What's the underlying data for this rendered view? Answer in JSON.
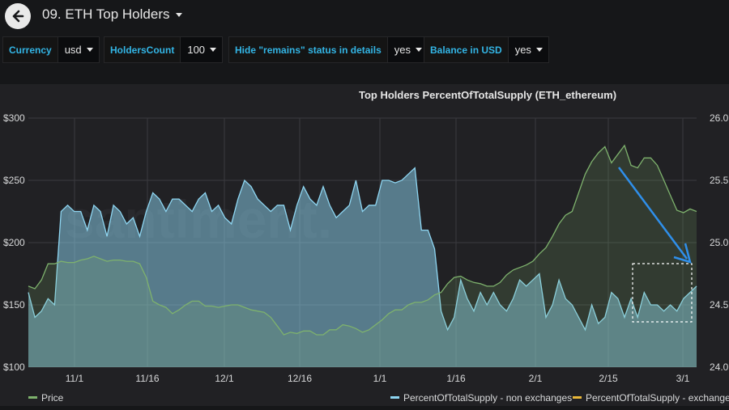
{
  "header": {
    "title": "09. ETH Top Holders"
  },
  "variables": [
    {
      "label": "Currency",
      "value": "usd"
    },
    {
      "label": "HoldersCount",
      "value": "100"
    },
    {
      "label": "Hide \"remains\" status in details",
      "value": "yes"
    },
    {
      "label": "Balance in USD",
      "value": "yes"
    }
  ],
  "panel": {
    "watermark": "santiment."
  },
  "chart_data": {
    "type": "area",
    "title": "Top Holders PercentOfTotalSupply (ETH_ethereum)",
    "x_ticks": [
      "11/1",
      "11/16",
      "12/1",
      "12/16",
      "1/1",
      "1/16",
      "2/1",
      "2/15",
      "3/1"
    ],
    "y_left": {
      "ticks": [
        "$100",
        "$150",
        "$200",
        "$250",
        "$300"
      ],
      "range": [
        100,
        300
      ]
    },
    "y_right": {
      "ticks": [
        "24.0",
        "24.5",
        "25.0",
        "25.5",
        "26.0"
      ],
      "range": [
        24.0,
        26.0
      ]
    },
    "grid": true,
    "legend_position": "bottom",
    "series": [
      {
        "name": "Price",
        "axis": "left",
        "color": "#7eb26d",
        "values": [
          165,
          163,
          170,
          183,
          183,
          185,
          184,
          184,
          186,
          187,
          189,
          187,
          185,
          186,
          186,
          185,
          185,
          183,
          172,
          153,
          150,
          148,
          143,
          146,
          150,
          153,
          153,
          149,
          149,
          148,
          149,
          150,
          150,
          148,
          146,
          145,
          144,
          140,
          133,
          126,
          128,
          127,
          129,
          129,
          126,
          126,
          130,
          130,
          134,
          133,
          131,
          128,
          130,
          134,
          138,
          143,
          146,
          146,
          150,
          152,
          152,
          154,
          158,
          160,
          167,
          172,
          173,
          170,
          168,
          167,
          165,
          165,
          168,
          174,
          178,
          180,
          182,
          185,
          191,
          196,
          205,
          215,
          222,
          225,
          240,
          255,
          265,
          272,
          277,
          264,
          271,
          278,
          262,
          260,
          268,
          268,
          262,
          250,
          238,
          226,
          224,
          227,
          225
        ]
      },
      {
        "name": "PercentOfTotalSupply - non exchanges",
        "axis": "right",
        "color": "#8ed6f2",
        "values": [
          24.6,
          24.4,
          24.45,
          24.55,
          24.5,
          25.25,
          25.3,
          25.25,
          25.25,
          25.1,
          25.3,
          25.25,
          25.05,
          25.3,
          25.25,
          25.15,
          25.2,
          25.05,
          25.25,
          25.4,
          25.35,
          25.25,
          25.35,
          25.35,
          25.3,
          25.25,
          25.35,
          25.4,
          25.25,
          25.3,
          25.2,
          25.15,
          25.35,
          25.5,
          25.45,
          25.35,
          25.3,
          25.25,
          25.3,
          25.3,
          25.1,
          25.3,
          25.45,
          25.35,
          25.3,
          25.45,
          25.3,
          25.2,
          25.25,
          25.3,
          25.5,
          25.25,
          25.3,
          25.3,
          25.5,
          25.5,
          25.48,
          25.5,
          25.55,
          25.6,
          25.1,
          25.1,
          24.95,
          24.45,
          24.3,
          24.4,
          24.7,
          24.55,
          24.45,
          24.6,
          24.5,
          24.6,
          24.5,
          24.45,
          24.55,
          24.7,
          24.65,
          24.7,
          24.75,
          24.4,
          24.5,
          24.7,
          24.55,
          24.5,
          24.4,
          24.3,
          24.5,
          24.35,
          24.4,
          24.6,
          24.55,
          24.4,
          24.55,
          24.4,
          24.6,
          24.5,
          24.5,
          24.45,
          24.5,
          24.45,
          24.55,
          24.6,
          24.65
        ]
      },
      {
        "name": "PercentOfTotalSupply - exchanges",
        "axis": "right",
        "color": "#eab839",
        "values": []
      }
    ]
  }
}
